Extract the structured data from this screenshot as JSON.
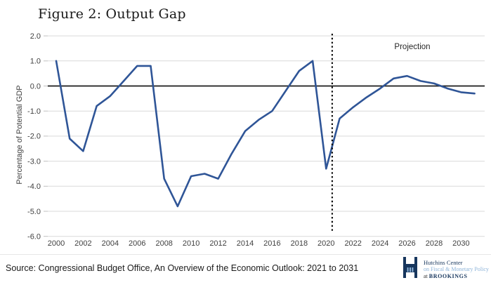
{
  "title": "Figure 2: Output Gap",
  "projection_label": "Projection",
  "source_text": "Source: Congressional Budget Office, An Overview of the Economic Outlook: 2021 to 2031",
  "logo": {
    "line1": "Hutchins Center",
    "line2": "on Fiscal & Monetary Policy",
    "line3_prefix": "at",
    "line3_name": "BROOKINGS"
  },
  "colors": {
    "line": "#2f5597",
    "grid": "#d9d9d9",
    "zero_line": "#1a1a1a",
    "projection_divider": "#111111",
    "tick_text": "#404040",
    "logo_navy": "#17365d",
    "logo_blue": "#8eb4d9"
  },
  "chart_data": {
    "type": "line",
    "title": "Figure 2: Output Gap",
    "ylabel": "Percentage of Potential GDP",
    "xlabel": "",
    "ylim": [
      -6.0,
      2.0
    ],
    "xlim": [
      2000,
      2031
    ],
    "grid": true,
    "yticks": [
      2.0,
      1.0,
      0.0,
      -1.0,
      -2.0,
      -3.0,
      -4.0,
      -5.0,
      -6.0
    ],
    "xticks": [
      2000,
      2002,
      2004,
      2006,
      2008,
      2010,
      2012,
      2014,
      2016,
      2018,
      2020,
      2022,
      2024,
      2026,
      2028,
      2030
    ],
    "projection_divider_year": 2020.45,
    "annotation": "Projection",
    "series": [
      {
        "name": "Output gap (% of potential GDP)",
        "x": [
          2000,
          2001,
          2002,
          2003,
          2004,
          2005,
          2006,
          2007,
          2008,
          2009,
          2010,
          2011,
          2012,
          2013,
          2014,
          2015,
          2016,
          2017,
          2018,
          2019,
          2020,
          2021,
          2022,
          2023,
          2024,
          2025,
          2026,
          2027,
          2028,
          2029,
          2030,
          2031
        ],
        "y": [
          1.0,
          -2.1,
          -2.6,
          -0.8,
          -0.4,
          0.2,
          0.8,
          0.8,
          -3.7,
          -4.8,
          -3.6,
          -3.5,
          -3.7,
          -2.7,
          -1.8,
          -1.35,
          -1.0,
          -0.2,
          0.6,
          1.0,
          -3.3,
          -1.3,
          -0.85,
          -0.45,
          -0.1,
          0.3,
          0.4,
          0.2,
          0.1,
          -0.1,
          -0.25,
          -0.3
        ]
      }
    ]
  }
}
